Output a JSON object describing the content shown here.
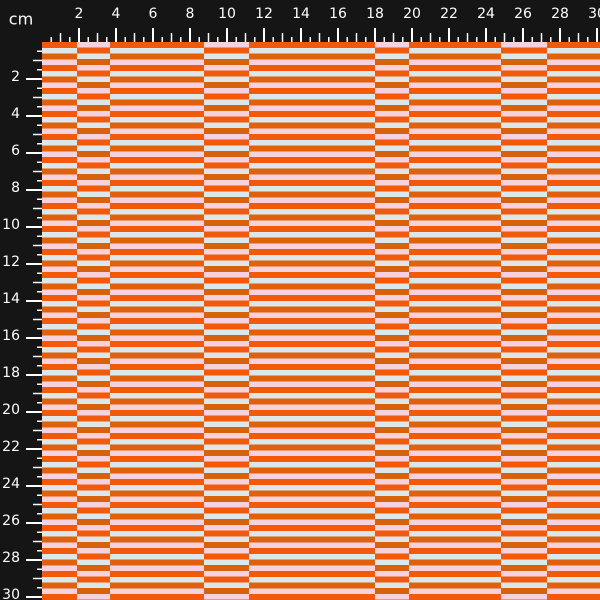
{
  "ruler": {
    "unit": "cm",
    "top": [
      2,
      4,
      6,
      8,
      10,
      12,
      14,
      16,
      18,
      20,
      22,
      24,
      26,
      28,
      30
    ],
    "left": [
      2,
      4,
      6,
      8,
      10,
      12,
      14,
      16,
      18,
      20,
      22,
      24,
      26,
      28,
      30
    ]
  }
}
